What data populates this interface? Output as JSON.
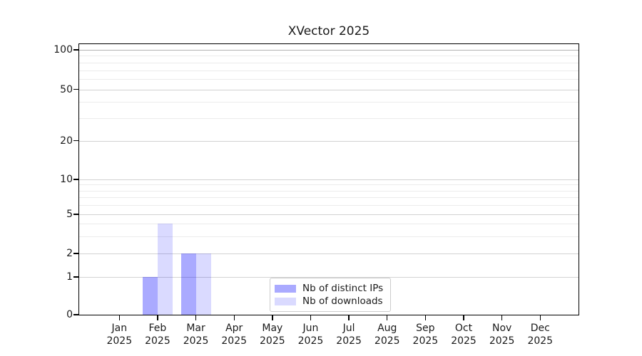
{
  "chart_data": {
    "type": "bar",
    "title": "XVector 2025",
    "categories": [
      "Jan",
      "Feb",
      "Mar",
      "Apr",
      "May",
      "Jun",
      "Jul",
      "Aug",
      "Sep",
      "Oct",
      "Nov",
      "Dec"
    ],
    "x_sublabel": "2025",
    "series": [
      {
        "name": "Nb of distinct IPs",
        "color": "rgba(0,0,255,0.335)",
        "values": [
          0,
          1,
          2,
          0,
          0,
          0,
          0,
          0,
          0,
          0,
          0,
          0
        ]
      },
      {
        "name": "Nb of downloads",
        "color": "rgba(0,0,255,0.145)",
        "values": [
          0,
          4,
          2,
          0,
          0,
          0,
          0,
          0,
          0,
          0,
          0,
          0
        ]
      }
    ],
    "y_axis": {
      "scale": "log-like",
      "range": [
        0,
        100
      ],
      "major_ticks": [
        0,
        1,
        2,
        5,
        10,
        20,
        50,
        100
      ],
      "minor_ticks": [
        3,
        4,
        6,
        7,
        8,
        9,
        30,
        40,
        60,
        70,
        80,
        90
      ]
    },
    "legend": {
      "location": "lower center"
    },
    "colors": {
      "major_grid": "#d2d2d2",
      "top_major_grid": "#b3b3b3",
      "minor_grid": "#ebebeb",
      "axis": "#000000",
      "text": "#1a1a1a",
      "background": "#ffffff"
    }
  }
}
